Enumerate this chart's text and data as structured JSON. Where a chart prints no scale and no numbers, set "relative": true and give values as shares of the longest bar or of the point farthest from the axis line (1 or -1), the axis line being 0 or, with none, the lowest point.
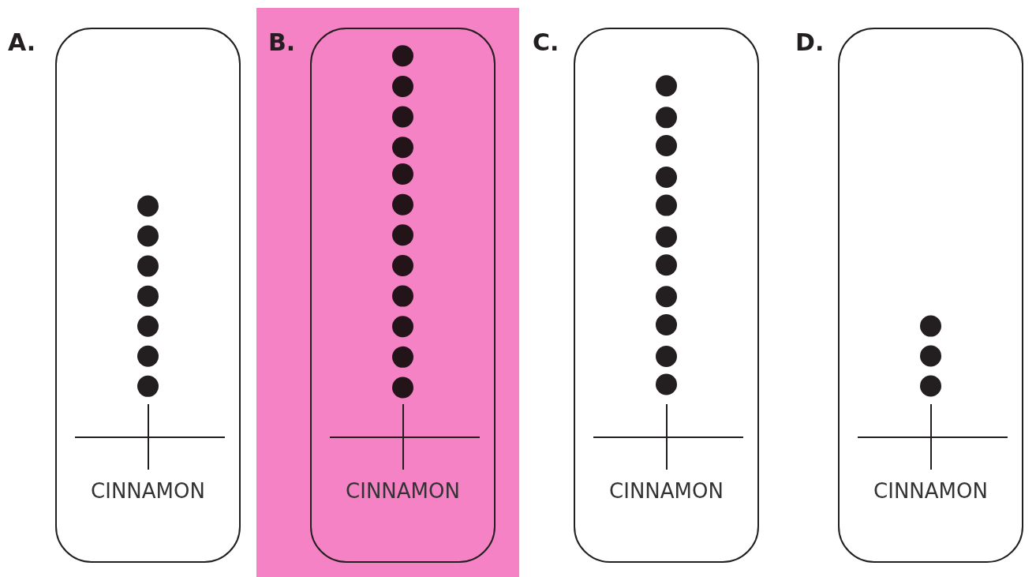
{
  "chart_data": [
    {
      "type": "scatter",
      "title": "A.",
      "categories": [
        "CINNAMON"
      ],
      "marker": "circle",
      "relative": true,
      "tick_labels": "x",
      "series": [
        {
          "color": "#231f20",
          "x": [
            "CINNAMON",
            "CINNAMON",
            "CINNAMON",
            "CINNAMON",
            "CINNAMON",
            "CINNAMON",
            "CINNAMON"
          ],
          "values": [
            0.22,
            0.35,
            0.48,
            0.61,
            0.74,
            0.87,
            1
          ]
        }
      ]
    },
    {
      "type": "scatter",
      "title": "B.",
      "categories": [
        "CINNAMON"
      ],
      "marker": "circle",
      "relative": true,
      "tick_labels": "x",
      "series": [
        {
          "color": "#231419",
          "x": [
            "CINNAMON",
            "CINNAMON",
            "CINNAMON",
            "CINNAMON",
            "CINNAMON",
            "CINNAMON",
            "CINNAMON",
            "CINNAMON",
            "CINNAMON",
            "CINNAMON",
            "CINNAMON",
            "CINNAMON"
          ],
          "values": [
            0.13,
            0.21,
            0.29,
            0.37,
            0.45,
            0.53,
            0.61,
            0.69,
            0.76,
            0.84,
            0.92,
            1
          ]
        }
      ]
    },
    {
      "type": "scatter",
      "title": "C.",
      "categories": [
        "CINNAMON"
      ],
      "marker": "circle",
      "relative": true,
      "tick_labels": "x",
      "series": [
        {
          "color": "#231f20",
          "x": [
            "CINNAMON",
            "CINNAMON",
            "CINNAMON",
            "CINNAMON",
            "CINNAMON",
            "CINNAMON",
            "CINNAMON",
            "CINNAMON",
            "CINNAMON",
            "CINNAMON",
            "CINNAMON"
          ],
          "values": [
            0.15,
            0.23,
            0.32,
            0.4,
            0.49,
            0.57,
            0.66,
            0.74,
            0.83,
            0.91,
            1
          ]
        }
      ]
    },
    {
      "type": "scatter",
      "title": "D.",
      "categories": [
        "CINNAMON"
      ],
      "marker": "circle",
      "relative": true,
      "tick_labels": "x",
      "series": [
        {
          "color": "#231f20",
          "x": [
            "CINNAMON",
            "CINNAMON",
            "CINNAMON"
          ],
          "values": [
            0.46,
            0.73,
            1
          ]
        }
      ]
    }
  ]
}
